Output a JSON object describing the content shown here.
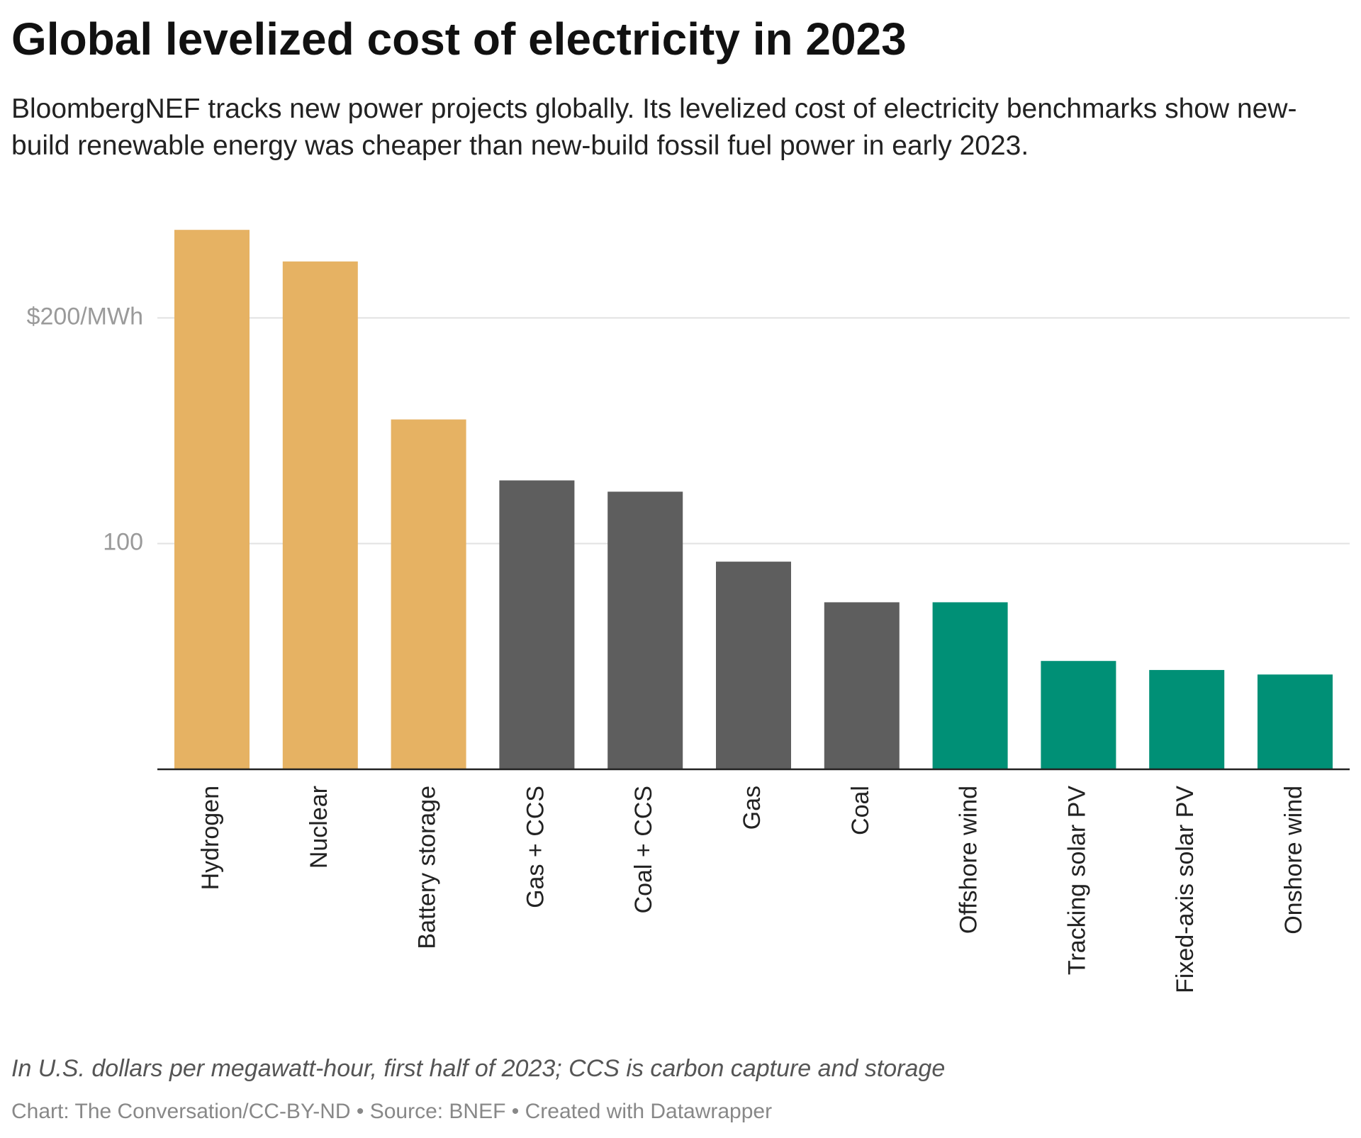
{
  "chart_data": {
    "type": "bar",
    "title": "Global levelized cost of electricity in 2023",
    "subtitle": "BloombergNEF tracks new power projects globally. Its levelized cost of electricity benchmarks show new-build renewable energy was cheaper than new-build fossil fuel power in early 2023.",
    "categories": [
      "Hydrogen",
      "Nuclear",
      "Battery storage",
      "Gas + CCS",
      "Coal + CCS",
      "Gas",
      "Coal",
      "Offshore wind",
      "Tracking solar PV",
      "Fixed-axis solar PV",
      "Onshore wind"
    ],
    "values": [
      239,
      225,
      155,
      128,
      123,
      92,
      74,
      74,
      48,
      44,
      42
    ],
    "colors": [
      "#e6b263",
      "#e6b263",
      "#e6b263",
      "#5e5e5e",
      "#5e5e5e",
      "#5e5e5e",
      "#5e5e5e",
      "#009076",
      "#009076",
      "#009076",
      "#009076"
    ],
    "ylim": [
      0,
      240
    ],
    "yticks": [
      100,
      {
        "value": 200,
        "label": "$200/MWh"
      }
    ],
    "grid": true,
    "notes": "In U.S. dollars per megawatt-hour, first half of 2023; CCS is carbon capture and storage",
    "source": "Chart: The Conversation/CC-BY-ND • Source: BNEF • Created with Datawrapper"
  }
}
